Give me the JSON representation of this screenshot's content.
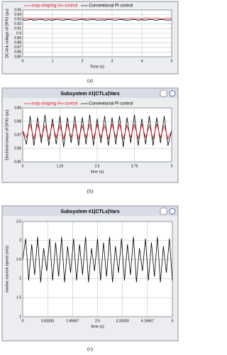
{
  "chart_data": [
    {
      "type": "line",
      "caption": "(a)",
      "ylabel": "DC-link voltage of DFIG (pu)",
      "xlabel": "Time (s)",
      "x": [
        0,
        0.125,
        0.25,
        0.375,
        0.5,
        0.625,
        0.75,
        0.875,
        1,
        1.125,
        1.25,
        1.375,
        1.5,
        1.625,
        1.75,
        1.875,
        2,
        2.125,
        2.25,
        2.375,
        2.5,
        2.625,
        2.75,
        2.875,
        3,
        3.125,
        3.25,
        3.375,
        3.5,
        3.625,
        3.75,
        3.875,
        4,
        4.125,
        4.25,
        4.375,
        4.5,
        4.625,
        4.75,
        4.875,
        5
      ],
      "series": [
        {
          "name": "loop-shaping H∞ control",
          "color": "#e8141c",
          "values": [
            0.932,
            0.933,
            0.932,
            0.931,
            0.933,
            0.932,
            0.932,
            0.933,
            0.931,
            0.932,
            0.933,
            0.932,
            0.931,
            0.932,
            0.933,
            0.932,
            0.932,
            0.931,
            0.933,
            0.932,
            0.932,
            0.933,
            0.931,
            0.932,
            0.932,
            0.933,
            0.932,
            0.931,
            0.932,
            0.933,
            0.932,
            0.932,
            0.931,
            0.933,
            0.932,
            0.932,
            0.933,
            0.931,
            0.932,
            0.933,
            0.932
          ]
        },
        {
          "name": "Conventional PI control",
          "color": "#000000",
          "values": [
            0.929,
            0.928,
            0.93,
            0.928,
            0.929,
            0.93,
            0.928,
            0.929,
            0.928,
            0.93,
            0.929,
            0.928,
            0.93,
            0.929,
            0.928,
            0.929,
            0.93,
            0.928,
            0.929,
            0.93,
            0.928,
            0.929,
            0.928,
            0.93,
            0.929,
            0.928,
            0.93,
            0.929,
            0.928,
            0.929,
            0.93,
            0.928,
            0.929,
            0.928,
            0.93,
            0.929,
            0.928,
            0.93,
            0.929,
            0.928,
            0.929
          ]
        }
      ],
      "xlim": [
        0,
        5
      ],
      "xticks": [
        0,
        1,
        2,
        3,
        4,
        5
      ],
      "ylim": [
        0.85,
        0.95
      ],
      "yticks": [
        0.85,
        0.86,
        0.87,
        0.88,
        0.89,
        0.9,
        0.91,
        0.92,
        0.93,
        0.94,
        0.95
      ],
      "grid": true
    },
    {
      "type": "line",
      "title": "Subsystem #1|CTLs|Vars",
      "caption": "(b)",
      "ylabel": "Electrical torque of DFIG (pu)",
      "xlabel": "time (s)",
      "x": [
        0,
        0.125,
        0.25,
        0.375,
        0.5,
        0.625,
        0.75,
        0.875,
        1,
        1.125,
        1.25,
        1.375,
        1.5,
        1.625,
        1.75,
        1.875,
        2,
        2.125,
        2.25,
        2.375,
        2.5,
        2.625,
        2.75,
        2.875,
        3,
        3.125,
        3.25,
        3.375,
        3.5,
        3.625,
        3.75,
        3.875,
        4,
        4.125,
        4.25,
        4.375,
        4.5,
        4.625,
        4.75,
        4.875,
        5
      ],
      "series": [
        {
          "name": "Conventional PI control",
          "color": "#000000",
          "values": [
            0.873,
            0.863,
            0.884,
            0.862,
            0.883,
            0.864,
            0.885,
            0.862,
            0.882,
            0.863,
            0.884,
            0.861,
            0.883,
            0.864,
            0.884,
            0.862,
            0.883,
            0.863,
            0.885,
            0.862,
            0.882,
            0.864,
            0.884,
            0.862,
            0.883,
            0.863,
            0.884,
            0.861,
            0.883,
            0.864,
            0.885,
            0.862,
            0.882,
            0.863,
            0.884,
            0.862,
            0.883,
            0.864,
            0.884,
            0.862,
            0.873
          ]
        },
        {
          "name": "loop-shaping H∞ control",
          "color": "#e8141c",
          "values": [
            0.873,
            0.868,
            0.878,
            0.867,
            0.878,
            0.868,
            0.877,
            0.867,
            0.878,
            0.868,
            0.877,
            0.867,
            0.878,
            0.868,
            0.878,
            0.867,
            0.877,
            0.868,
            0.878,
            0.867,
            0.878,
            0.868,
            0.877,
            0.867,
            0.878,
            0.868,
            0.878,
            0.867,
            0.877,
            0.868,
            0.878,
            0.867,
            0.878,
            0.868,
            0.877,
            0.867,
            0.878,
            0.868,
            0.877,
            0.867,
            0.873
          ]
        }
      ],
      "xlim": [
        0,
        5
      ],
      "xticks": [
        0,
        1.25,
        2.5,
        3.75,
        5
      ],
      "ylim": [
        0.85,
        0.89
      ],
      "yticks": [
        0.85,
        0.86,
        0.87,
        0.88,
        0.89
      ],
      "grid": true
    },
    {
      "type": "line",
      "title": "Subsystem #1|CTLs|Vars",
      "caption": "(c)",
      "ylabel": "marine current speed (m/s)",
      "xlabel": "time (s)",
      "x": [
        0,
        0.1,
        0.2,
        0.3,
        0.4,
        0.5,
        0.6,
        0.7,
        0.8,
        0.9,
        1,
        1.1,
        1.2,
        1.3,
        1.4,
        1.5,
        1.6,
        1.7,
        1.8,
        1.9,
        2,
        2.1,
        2.2,
        2.3,
        2.4,
        2.5,
        2.6,
        2.7,
        2.8,
        2.9,
        3,
        3.1,
        3.2,
        3.3,
        3.4,
        3.5,
        3.6,
        3.7,
        3.8,
        3.9,
        4,
        4.1,
        4.2,
        4.3,
        4.4,
        4.5,
        4.6,
        4.7,
        4.8,
        4.9,
        5
      ],
      "color": "#000000",
      "values": [
        2.5,
        3.05,
        1.95,
        2.9,
        2.1,
        3.1,
        1.9,
        2.8,
        2.2,
        3.05,
        1.95,
        2.95,
        2.05,
        3.1,
        1.9,
        2.85,
        2.15,
        3.05,
        1.95,
        2.9,
        2.1,
        3.1,
        1.9,
        2.8,
        2.2,
        3.05,
        1.95,
        2.95,
        2.05,
        3.1,
        1.9,
        2.85,
        2.15,
        3.05,
        1.95,
        2.9,
        2.1,
        3.1,
        1.9,
        2.8,
        2.2,
        3.05,
        1.95,
        2.95,
        2.05,
        3.1,
        1.9,
        2.85,
        2.15,
        3.05,
        1.95
      ],
      "xlim": [
        0,
        5
      ],
      "xticks": [
        0,
        0.83333,
        1.66667,
        2.5,
        3.33333,
        4.16667,
        5
      ],
      "ylim": [
        1,
        3.5
      ],
      "yticks": [
        1,
        1.5,
        2,
        2.5,
        3,
        3.5
      ],
      "grid": true
    }
  ]
}
